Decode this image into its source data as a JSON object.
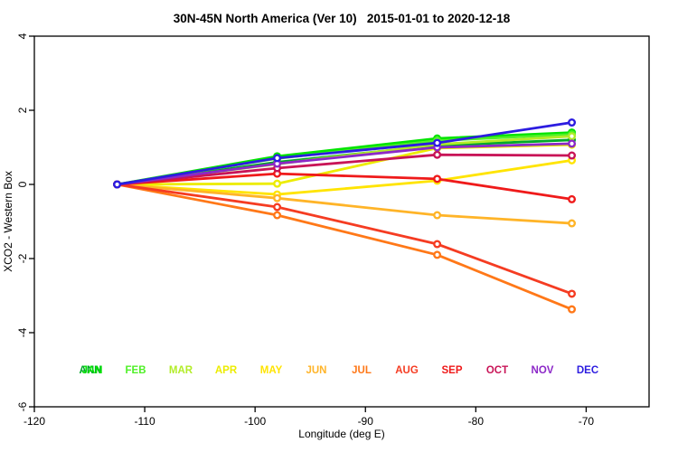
{
  "window": {
    "background": "#ffffff"
  },
  "chart_data": {
    "type": "line",
    "title": "30N-45N North America (Ver 10)   2015-01-01 to 2020-12-18",
    "xlabel": "Longitude (deg E)",
    "ylabel": "XCO2 - Western Box",
    "xlim": [
      -120,
      -64.3
    ],
    "ylim": [
      -6,
      4
    ],
    "xticks": [
      -120,
      -110,
      -100,
      -90,
      -80,
      -70
    ],
    "yticks": [
      -6,
      -4,
      -2,
      0,
      2,
      4
    ],
    "grid": false,
    "legend_position": "bottom-inside",
    "marker": "open-circle",
    "x": [
      -112.5,
      -98,
      -83.5,
      -71.3
    ],
    "series": [
      {
        "name": "ANN",
        "color": "#00A828",
        "values": [
          0,
          0.6,
          1.05,
          1.2
        ]
      },
      {
        "name": "JAN",
        "color": "#00E400",
        "values": [
          0,
          0.76,
          1.24,
          1.4
        ]
      },
      {
        "name": "FEB",
        "color": "#50F028",
        "values": [
          0,
          0.7,
          1.18,
          1.35
        ]
      },
      {
        "name": "MAR",
        "color": "#B2EC28",
        "values": [
          0,
          0.55,
          1.08,
          1.3
        ]
      },
      {
        "name": "APR",
        "color": "#ECEC00",
        "values": [
          0,
          0.02,
          0.98,
          1.07
        ]
      },
      {
        "name": "MAY",
        "color": "#FFE400",
        "values": [
          0,
          -0.27,
          0.1,
          0.65
        ]
      },
      {
        "name": "JUN",
        "color": "#FFB428",
        "values": [
          0,
          -0.37,
          -0.83,
          -1.05
        ]
      },
      {
        "name": "JUL",
        "color": "#FF7818",
        "values": [
          0,
          -0.83,
          -1.9,
          -3.37
        ]
      },
      {
        "name": "AUG",
        "color": "#F53C22",
        "values": [
          0,
          -0.61,
          -1.61,
          -2.95
        ]
      },
      {
        "name": "SEP",
        "color": "#EF1A1A",
        "values": [
          0,
          0.29,
          0.15,
          -0.4
        ]
      },
      {
        "name": "OCT",
        "color": "#C81457",
        "values": [
          0,
          0.44,
          0.8,
          0.78
        ]
      },
      {
        "name": "NOV",
        "color": "#8C28C8",
        "values": [
          0,
          0.56,
          1.0,
          1.1
        ]
      },
      {
        "name": "DEC",
        "color": "#2C1CE0",
        "values": [
          0,
          0.71,
          1.12,
          1.67
        ]
      }
    ]
  }
}
